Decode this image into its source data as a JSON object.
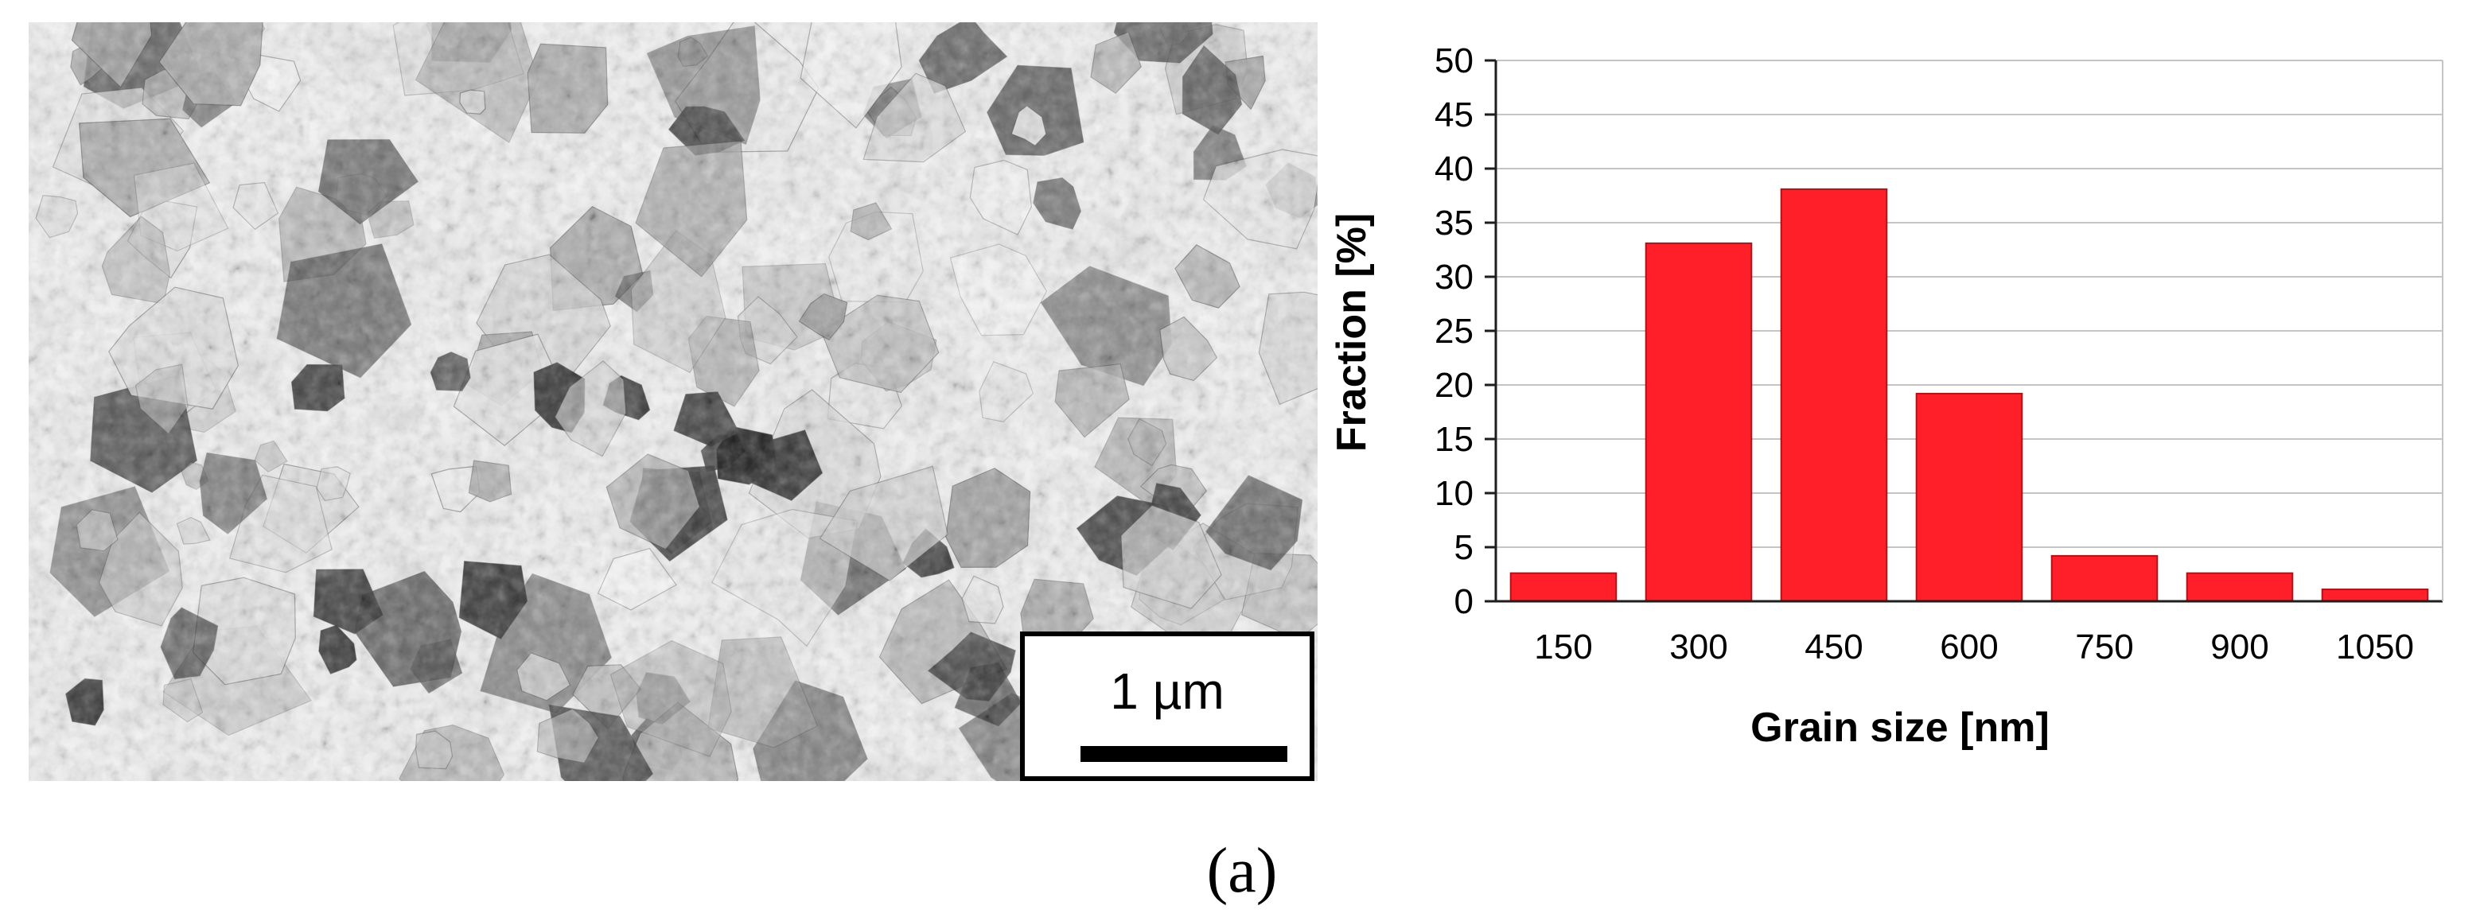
{
  "scale_bar": {
    "label": "1 µm"
  },
  "panel_label": "(a)",
  "colors": {
    "bar": "#ff1f29",
    "bar_edge": "#b0121a",
    "grid": "#c4c4c4",
    "axis": "#1e1e1e"
  },
  "chart_data": {
    "type": "bar",
    "categories": [
      "150",
      "300",
      "450",
      "600",
      "750",
      "900",
      "1050"
    ],
    "values": [
      2.6,
      33.1,
      38.1,
      19.2,
      4.2,
      2.6,
      1.1
    ],
    "xlabel": "Grain size [nm]",
    "ylabel": "Fraction [%]",
    "ylim": [
      0,
      50
    ],
    "yticks": [
      0,
      5,
      10,
      15,
      20,
      25,
      30,
      35,
      40,
      45,
      50
    ],
    "grid": true,
    "legend": "none"
  }
}
